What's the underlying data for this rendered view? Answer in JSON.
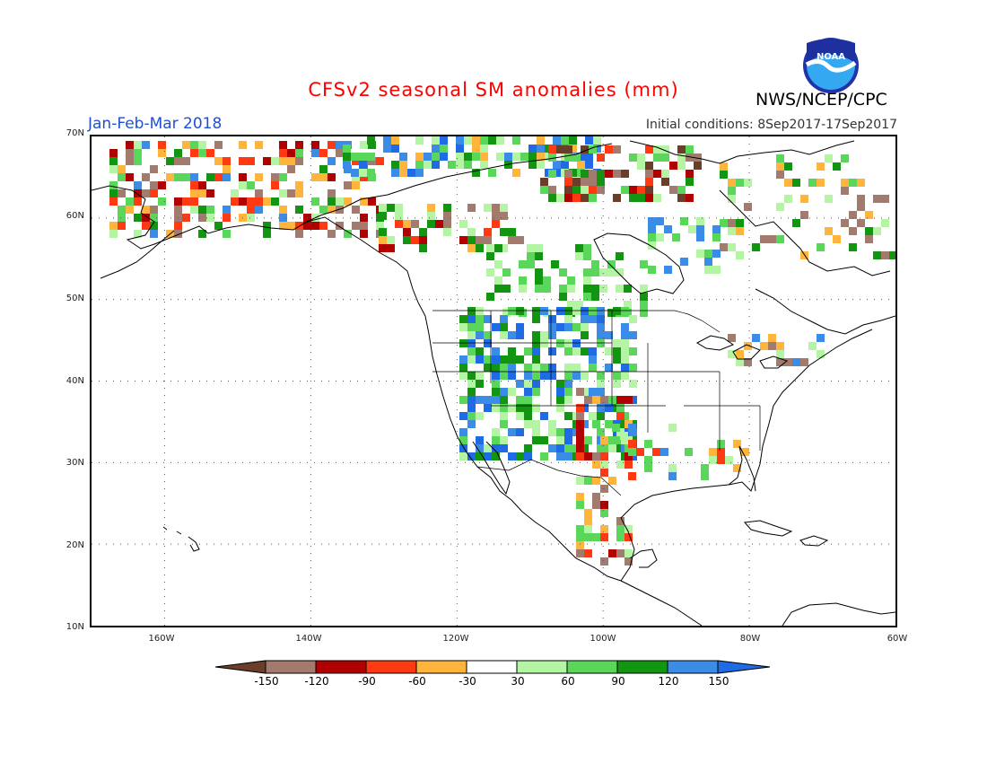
{
  "title": "CFSv2 seasonal SM anomalies (mm)",
  "organization": "NWS/NCEP/CPC",
  "logo_text": "NOAA",
  "season": "Jan-Feb-Mar 2018",
  "initial_conditions": "Initial conditions: 8Sep2017-17Sep2017",
  "lat_labels": [
    "70N",
    "60N",
    "50N",
    "40N",
    "30N",
    "20N",
    "10N"
  ],
  "lon_labels": [
    "160W",
    "140W",
    "120W",
    "100W",
    "80W",
    "60W"
  ],
  "legend": {
    "colors": [
      "#6b3e2a",
      "#a37a6e",
      "#b00000",
      "#ff3a12",
      "#ffb43c",
      "#ffffff",
      "#b4f5a4",
      "#5ad75a",
      "#129612",
      "#3a8ce6",
      "#1f6be6"
    ],
    "labels": [
      "-150",
      "-120",
      "-90",
      "-60",
      "-30",
      "30",
      "60",
      "90",
      "120",
      "150"
    ],
    "bounds": [
      -150,
      -120,
      -90,
      -60,
      -30,
      30,
      60,
      90,
      120,
      150
    ]
  },
  "map_region": {
    "lat_range": [
      10,
      70
    ],
    "lon_range": [
      -170,
      -60
    ]
  }
}
